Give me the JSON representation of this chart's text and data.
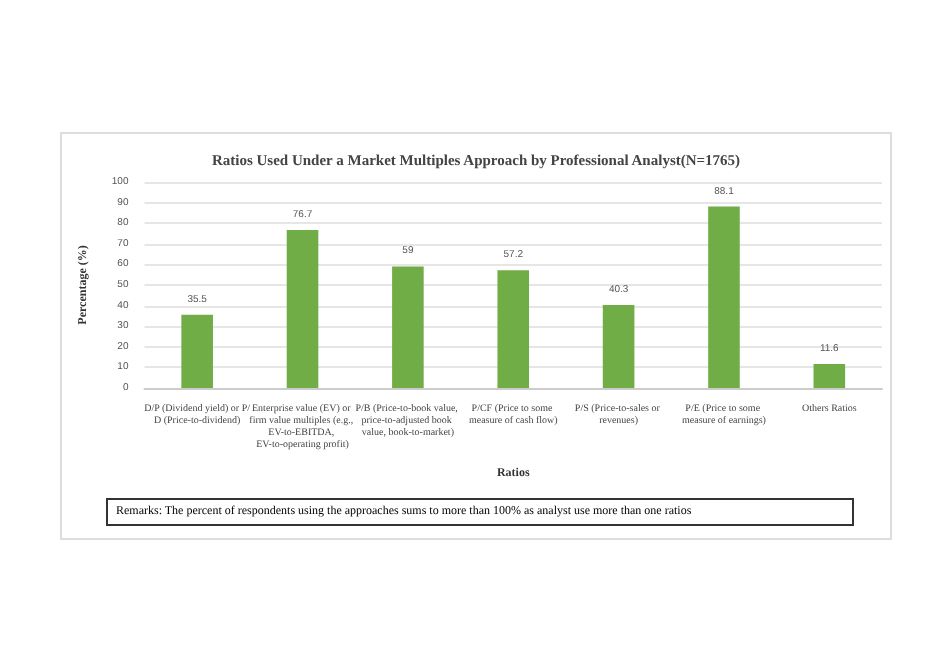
{
  "chart_data": {
    "type": "bar",
    "title": "Ratios Used Under a Market Multiples Approach by Professional Analyst(N=1765)",
    "xlabel": "Ratios",
    "ylabel": "Percentage (%)",
    "categories": [
      "D/P (Dividend yield) or P/D (Price-to-dividend)",
      "Enterprise value (EV) or firm value multiples (e.g., EV-to-EBITDA, EV-to-operating profit)",
      "P/B (Price-to-book value, price-to-adjusted book value, book-to-market)",
      "P/CF (Price to some measure of cash flow)",
      "P/S (Price-to-sales or revenues)",
      "P/E (Price to some measure of earnings)",
      "Others Ratios"
    ],
    "values": [
      35.5,
      76.7,
      59,
      57.2,
      40.3,
      88.1,
      11.6
    ],
    "color": "#70ad47",
    "ylim": [
      0,
      100
    ],
    "yticks": [
      0,
      10,
      20,
      30,
      40,
      50,
      60,
      70,
      80,
      90,
      100
    ],
    "grid": "y",
    "data_labels": true,
    "annotations": [
      "Remarks: The percent of respondents using the approaches sums to more than 100% as analyst use more than one ratios"
    ]
  }
}
